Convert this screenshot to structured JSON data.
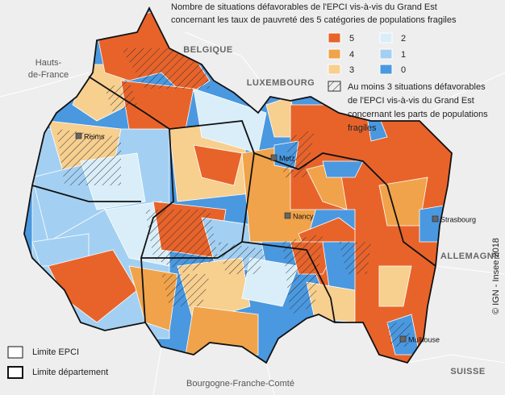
{
  "legend": {
    "title": [
      "Nombre de situations défavorables de l'EPCI vis-à-vis du Grand Est",
      "concernant les taux de pauvreté des 5 catégories de populations fragiles"
    ],
    "classes": [
      {
        "label": "5",
        "color": "#e8632a"
      },
      {
        "label": "4",
        "color": "#f0a34a"
      },
      {
        "label": "3",
        "color": "#f7cf8f"
      },
      {
        "label": "2",
        "color": "#d9eef9"
      },
      {
        "label": "1",
        "color": "#a3d0f2"
      },
      {
        "label": "0",
        "color": "#4a98e0"
      }
    ],
    "hatch": [
      "Au moins 3 situations défavorables",
      "de l'EPCI vis-à-vis du Grand Est",
      "concernant les parts de populations",
      "fragiles"
    ]
  },
  "boundaries": [
    "Limite EPCI",
    "Limite département"
  ],
  "places": {
    "hauts_de_france": [
      "Hauts-",
      "de-France"
    ],
    "belgique": "BELGIQUE",
    "luxembourg": "LUXEMBOURG",
    "allemagne": "ALLEMAGNE",
    "suisse": "SUISSE",
    "bfc": "Bourgogne-Franche-Comté"
  },
  "cities": [
    "Reims",
    "Metz",
    "Nancy",
    "Strasbourg",
    "Mulhouse"
  ],
  "credit": "© IGN - Insee 2018"
}
